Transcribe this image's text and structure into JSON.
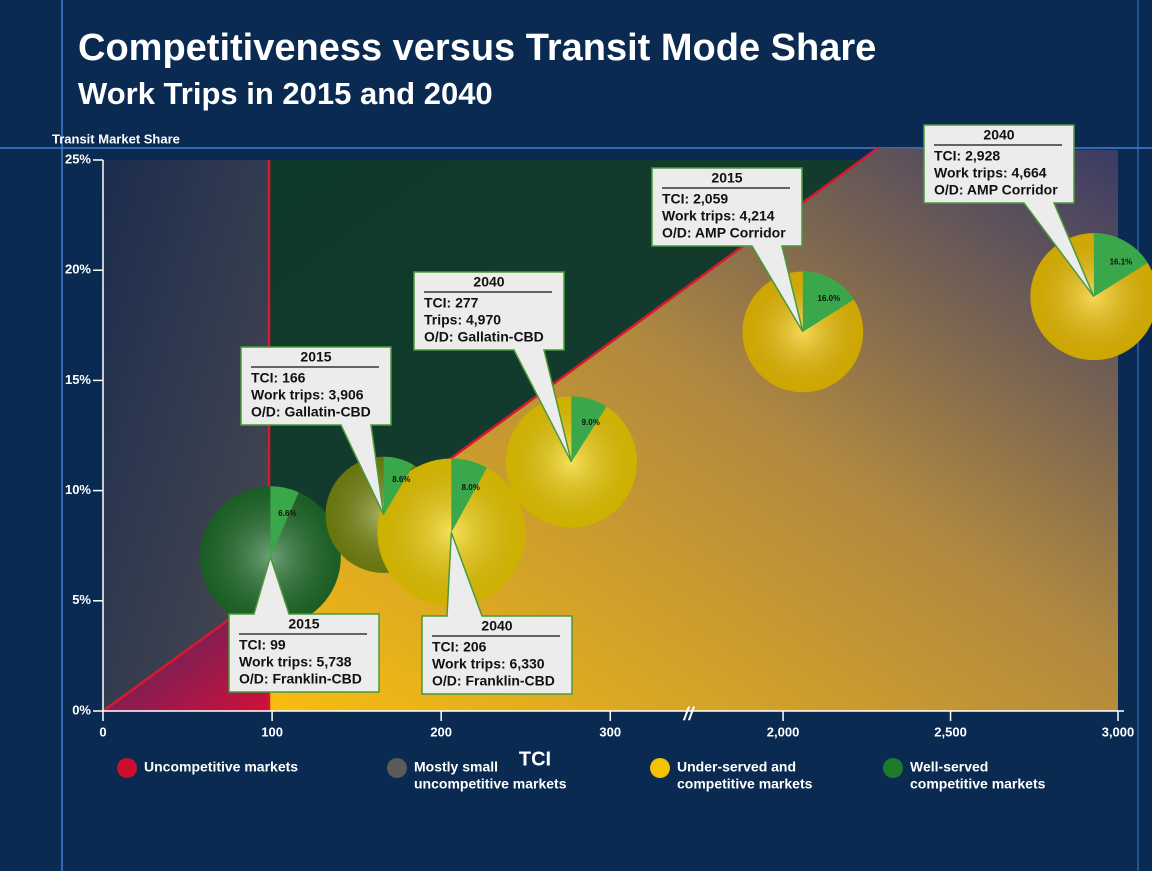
{
  "chart_data": {
    "type": "bubble",
    "title": "Competitiveness versus Transit Mode Share",
    "subtitle": "Work Trips in 2015 and 2040",
    "y_label": "Transit Market Share",
    "x_label": "TCI",
    "xlim": [
      0,
      3000
    ],
    "x_break": [
      330,
      1740
    ],
    "xticks": [
      0,
      100,
      200,
      300,
      {
        "value": 2000,
        "label": "2,000"
      },
      {
        "value": 2500,
        "label": "2,500"
      },
      {
        "value": 3000,
        "label": "3,000"
      }
    ],
    "ylim": [
      0,
      25
    ],
    "yticks": [
      {
        "value": 0,
        "label": "0%"
      },
      {
        "value": 5,
        "label": "5%"
      },
      {
        "value": 10,
        "label": "10%"
      },
      {
        "value": 15,
        "label": "15%"
      },
      {
        "value": 20,
        "label": "20%"
      },
      {
        "value": 25,
        "label": "25%"
      }
    ],
    "points": {
      "x": [
        99,
        166,
        206,
        277,
        2059,
        2928
      ],
      "y": [
        7.0,
        8.9,
        8.1,
        11.3,
        17.2,
        18.8
      ],
      "size": [
        5738,
        3906,
        6330,
        4970,
        4214,
        4664
      ],
      "colors": [
        "#1f6e2a",
        "#7a8a10",
        "#f2d000",
        "#f2d000",
        "#f2c400",
        "#f2c400"
      ],
      "shares": [
        6.6,
        8.6,
        8.0,
        9.0,
        16.0,
        16.1
      ],
      "value_labels": [
        "6.6%",
        "8.6%",
        "8.0%",
        "9.0%",
        "16.0%",
        "16.1%"
      ],
      "slice_color": "#3aa84a"
    },
    "callouts": [
      {
        "year": "2015",
        "lines": [
          "TCI: 99",
          "Work trips:  5,738",
          "O/D: Franklin-CBD"
        ]
      },
      {
        "year": "2015",
        "lines": [
          "TCI: 166",
          "Work trips:  3,906",
          "O/D: Gallatin-CBD"
        ]
      },
      {
        "year": "2040",
        "lines": [
          "TCI: 206",
          "Work trips:  6,330",
          "O/D: Franklin-CBD"
        ]
      },
      {
        "year": "2040",
        "lines": [
          "TCI: 277",
          "Trips:  4,970",
          "O/D: Gallatin-CBD"
        ]
      },
      {
        "year": "2015",
        "lines": [
          "TCI: 2,059",
          "Work trips:  4,214",
          "O/D: AMP Corridor"
        ]
      },
      {
        "year": "2040",
        "lines": [
          "TCI: 2,928",
          "Work trips:  4,664",
          "O/D: AMP Corridor"
        ]
      }
    ],
    "legend": [
      {
        "label": [
          "Uncompetitive markets"
        ],
        "color": "#c8102e"
      },
      {
        "label": [
          "Mostly small",
          "uncompetitive markets"
        ],
        "color": "#5a5a5a"
      },
      {
        "label": [
          "Under-served and",
          "competitive markets"
        ],
        "color": "#f2c400"
      },
      {
        "label": [
          "Well-served",
          "competitive markets"
        ],
        "color": "#1f7a2a"
      }
    ]
  }
}
